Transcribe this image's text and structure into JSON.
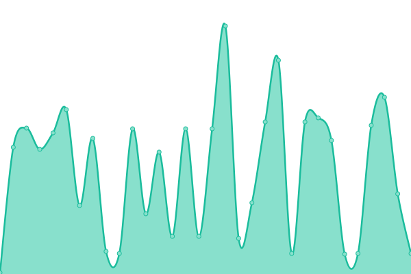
{
  "chart_data": {
    "type": "area",
    "values": [
      2,
      185,
      213,
      182,
      206,
      240,
      100,
      198,
      33,
      30,
      212,
      88,
      178,
      55,
      212,
      55,
      212,
      362,
      52,
      104,
      222,
      312,
      30,
      222,
      228,
      195,
      29,
      30,
      217,
      258,
      117,
      30
    ],
    "ylim": [
      0,
      400
    ],
    "color": "#1abc9c",
    "fill": "#88e0cc"
  }
}
